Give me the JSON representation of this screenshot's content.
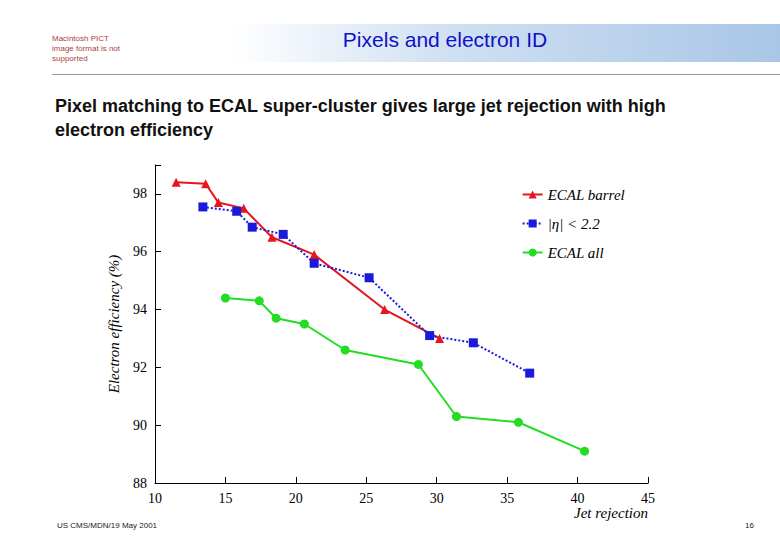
{
  "slide": {
    "placeholder": "Macintosh PICT image format is not supported",
    "footer": "US CMS/MDN/19 May 2001",
    "page_number": "16"
  },
  "chart_data": {
    "type": "line",
    "title": "Pixels and electron ID",
    "subtitle": "Pixel matching to ECAL super-cluster gives large jet rejection with high electron efficiency",
    "x_label": "Jet rejection",
    "y_label": "Electron efficiency (%)",
    "xlim": [
      10,
      45
    ],
    "xticks": [
      10,
      15,
      20,
      25,
      30,
      35,
      40,
      45
    ],
    "ylim": [
      88,
      99
    ],
    "yticks": [
      88,
      90,
      92,
      94,
      96,
      98
    ],
    "grid": false,
    "legend": "upper right",
    "series": [
      {
        "name": "ECAL barrel",
        "color": "#e8141e",
        "marker": "triangle",
        "line_style": "solid",
        "x": [
          11.5,
          13.6,
          14.5,
          16.3,
          18.3,
          21.3,
          26.3,
          30.2
        ],
        "values": [
          98.4,
          98.35,
          97.7,
          97.5,
          96.5,
          95.9,
          94.0,
          93.0
        ]
      },
      {
        "name": "|η| < 2.2",
        "color": "#1a1adc",
        "marker": "square",
        "line_style": "dotted",
        "x": [
          13.4,
          15.8,
          16.9,
          19.1,
          21.3,
          25.2,
          29.5,
          32.6,
          36.6
        ],
        "values": [
          97.55,
          97.4,
          96.85,
          96.6,
          95.6,
          95.1,
          93.1,
          92.85,
          91.8
        ]
      },
      {
        "name": "ECAL all",
        "color": "#22dd22",
        "marker": "circle",
        "line_style": "solid",
        "x": [
          15.0,
          17.4,
          18.6,
          20.6,
          23.5,
          28.7,
          31.4,
          35.8,
          40.5
        ],
        "values": [
          94.4,
          94.3,
          93.7,
          93.5,
          92.6,
          92.1,
          90.3,
          90.1,
          89.1
        ]
      }
    ]
  }
}
